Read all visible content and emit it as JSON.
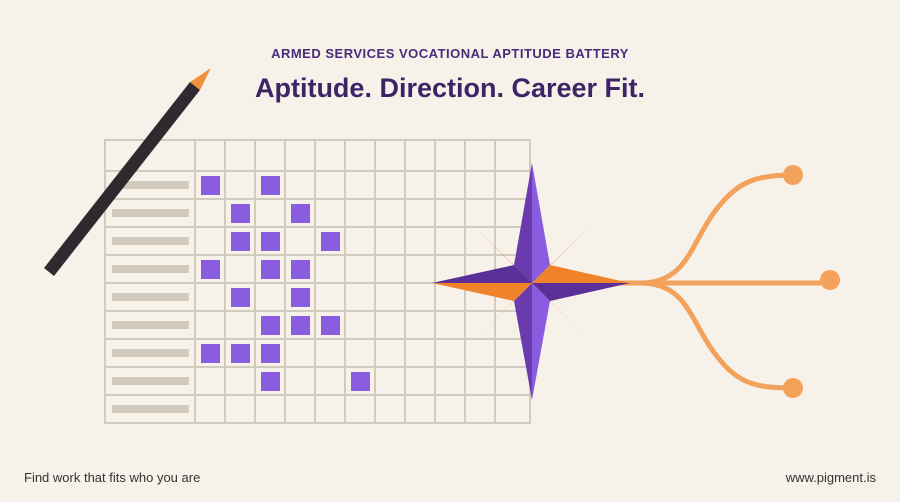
{
  "header": {
    "eyebrow": "ARMED SERVICES VOCATIONAL APTITUDE BATTERY",
    "title": "Aptitude. Direction. Career Fit."
  },
  "footer": {
    "tagline": "Find work that fits who you are",
    "url": "www.pigment.is"
  }
}
